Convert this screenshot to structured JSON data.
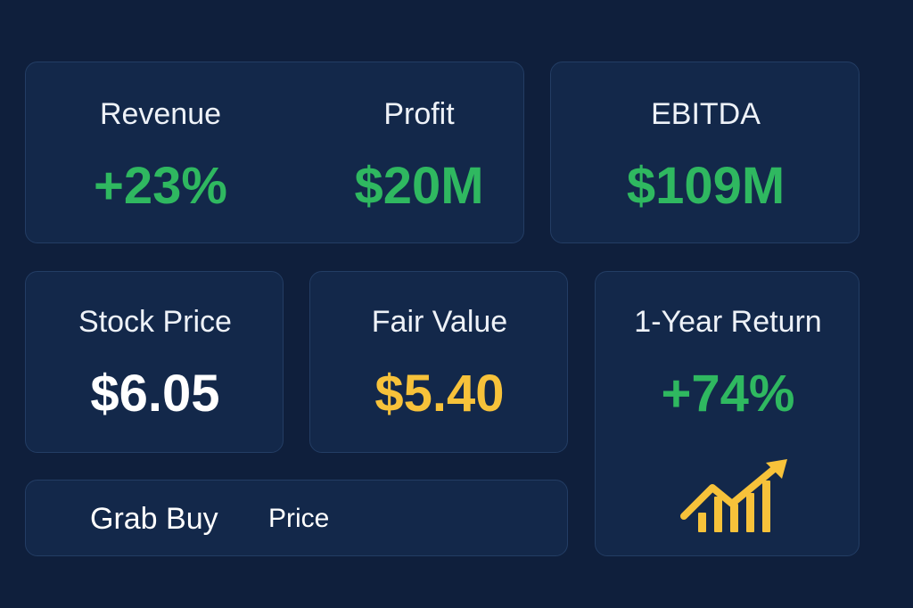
{
  "cards": {
    "revenue": {
      "label": "Revenue",
      "value": "+23%"
    },
    "profit": {
      "label": "Profit",
      "value": "$20M"
    },
    "ebitda": {
      "label": "EBITDA",
      "value": "$109M"
    },
    "stock_price": {
      "label": "Stock Price",
      "value": "$6.05"
    },
    "fair_value": {
      "label": "Fair Value",
      "value": "$5.40"
    },
    "one_year_return": {
      "label": "1-Year Return",
      "value": "+74%",
      "icon": "trend-up-bar-chart-icon"
    }
  },
  "buy_bar": {
    "brand": "Grab Buy",
    "price_label": "Price"
  },
  "colors": {
    "background": "#0f1f3c",
    "card": "#13284a",
    "positive": "#2fb860",
    "highlight": "#f7c23a",
    "text": "#ffffff"
  }
}
